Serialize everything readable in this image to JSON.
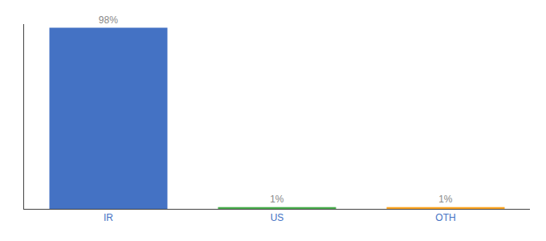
{
  "chart_data": {
    "type": "bar",
    "categories": [
      "IR",
      "US",
      "OTH"
    ],
    "values": [
      98,
      1,
      1
    ],
    "value_labels": [
      "98%",
      "1%",
      "1%"
    ],
    "colors": [
      "#4472c4",
      "#4caf50",
      "#ffa726"
    ],
    "ylim": [
      0,
      100
    ],
    "grid": false,
    "data_labels": true,
    "tick_labels": "x"
  }
}
